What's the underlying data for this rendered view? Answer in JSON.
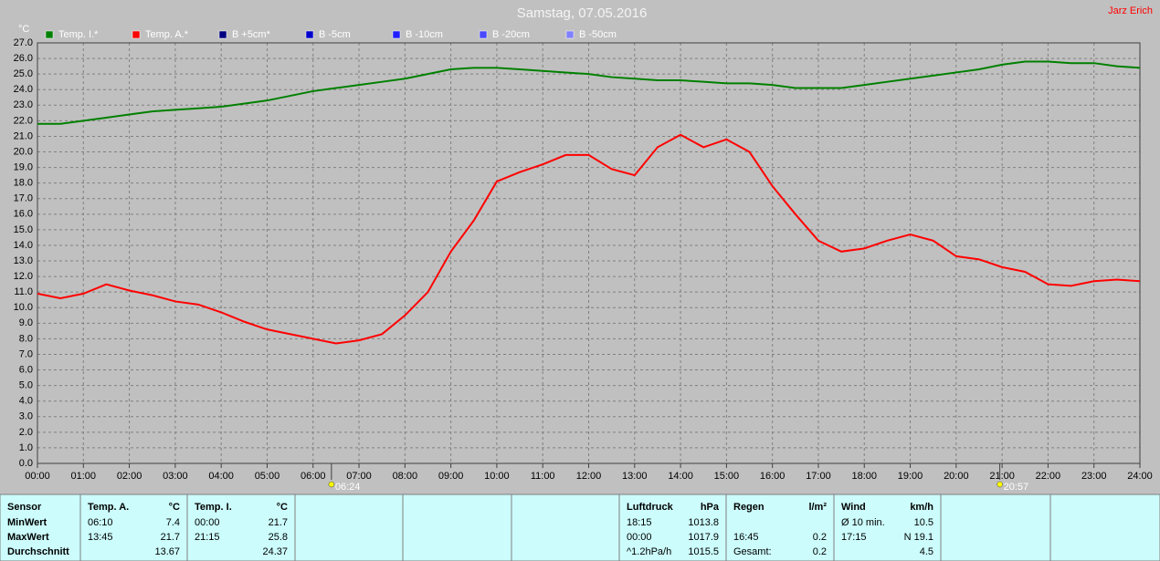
{
  "chart_data": {
    "type": "line",
    "title": "Samstag, 07.05.2016",
    "corner_text": "Jarz Erich",
    "y_axis_label": "°C",
    "grid": true,
    "x": [
      0,
      0.5,
      1,
      1.5,
      2,
      2.5,
      3,
      3.5,
      4,
      4.5,
      5,
      5.5,
      6,
      6.5,
      7,
      7.5,
      8,
      8.5,
      9,
      9.5,
      10,
      10.5,
      11,
      11.5,
      12,
      12.5,
      13,
      13.5,
      14,
      14.5,
      15,
      15.5,
      16,
      16.5,
      17,
      17.5,
      18,
      18.5,
      19,
      19.5,
      20,
      20.5,
      21,
      21.5,
      22,
      22.5,
      23,
      23.5,
      24
    ],
    "series": [
      {
        "name": "Temp. I.*",
        "color": "#008000",
        "values": [
          21.8,
          21.8,
          22.0,
          22.2,
          22.4,
          22.6,
          22.7,
          22.8,
          22.9,
          23.1,
          23.3,
          23.6,
          23.9,
          24.1,
          24.3,
          24.5,
          24.7,
          25.0,
          25.3,
          25.4,
          25.4,
          25.3,
          25.2,
          25.1,
          25.0,
          24.8,
          24.7,
          24.6,
          24.6,
          24.5,
          24.4,
          24.4,
          24.3,
          24.1,
          24.1,
          24.1,
          24.3,
          24.5,
          24.7,
          24.9,
          25.1,
          25.3,
          25.6,
          25.8,
          25.8,
          25.7,
          25.7,
          25.5,
          25.4
        ]
      },
      {
        "name": "Temp. A.*",
        "color": "#ff0000",
        "values": [
          10.9,
          10.6,
          10.9,
          11.5,
          11.1,
          10.8,
          10.4,
          10.2,
          9.7,
          9.1,
          8.6,
          8.3,
          8.0,
          7.7,
          7.9,
          8.3,
          9.5,
          11.0,
          13.6,
          15.6,
          18.1,
          18.7,
          19.2,
          19.8,
          19.8,
          18.9,
          18.5,
          20.3,
          21.1,
          20.3,
          20.8,
          20.0,
          17.8,
          16.0,
          14.3,
          13.6,
          13.8,
          14.3,
          14.7,
          14.3,
          13.3,
          13.1,
          12.6,
          12.3,
          11.5,
          11.4,
          11.7,
          11.8,
          11.7
        ]
      },
      {
        "name": "B +5cm*",
        "color": "#000080",
        "values": [
          null,
          null,
          null,
          null,
          null,
          null,
          null,
          null,
          null,
          null,
          null,
          null,
          null,
          null,
          null,
          null,
          null,
          null,
          null,
          null,
          null,
          null,
          null,
          null,
          null,
          null,
          null,
          null,
          null,
          null,
          null,
          null,
          null,
          null,
          null,
          null,
          null,
          null,
          null,
          null,
          null,
          null,
          null,
          null,
          null,
          null,
          null,
          null,
          null
        ]
      },
      {
        "name": "B -5cm",
        "color": "#0000cc",
        "values": [
          null,
          null,
          null,
          null,
          null,
          null,
          null,
          null,
          null,
          null,
          null,
          null,
          null,
          null,
          null,
          null,
          null,
          null,
          null,
          null,
          null,
          null,
          null,
          null,
          null,
          null,
          null,
          null,
          null,
          null,
          null,
          null,
          null,
          null,
          null,
          null,
          null,
          null,
          null,
          null,
          null,
          null,
          null,
          null,
          null,
          null,
          null,
          null,
          null
        ]
      },
      {
        "name": "B -10cm",
        "color": "#2020ff",
        "values": [
          null,
          null,
          null,
          null,
          null,
          null,
          null,
          null,
          null,
          null,
          null,
          null,
          null,
          null,
          null,
          null,
          null,
          null,
          null,
          null,
          null,
          null,
          null,
          null,
          null,
          null,
          null,
          null,
          null,
          null,
          null,
          null,
          null,
          null,
          null,
          null,
          null,
          null,
          null,
          null,
          null,
          null,
          null,
          null,
          null,
          null,
          null,
          null,
          null
        ]
      },
      {
        "name": "B -20cm",
        "color": "#4848ff",
        "values": [
          null,
          null,
          null,
          null,
          null,
          null,
          null,
          null,
          null,
          null,
          null,
          null,
          null,
          null,
          null,
          null,
          null,
          null,
          null,
          null,
          null,
          null,
          null,
          null,
          null,
          null,
          null,
          null,
          null,
          null,
          null,
          null,
          null,
          null,
          null,
          null,
          null,
          null,
          null,
          null,
          null,
          null,
          null,
          null,
          null,
          null,
          null,
          null,
          null
        ]
      },
      {
        "name": "B -50cm",
        "color": "#8080ff",
        "values": [
          null,
          null,
          null,
          null,
          null,
          null,
          null,
          null,
          null,
          null,
          null,
          null,
          null,
          null,
          null,
          null,
          null,
          null,
          null,
          null,
          null,
          null,
          null,
          null,
          null,
          null,
          null,
          null,
          null,
          null,
          null,
          null,
          null,
          null,
          null,
          null,
          null,
          null,
          null,
          null,
          null,
          null,
          null,
          null,
          null,
          null,
          null,
          null,
          null
        ]
      }
    ],
    "xlim": [
      0,
      24
    ],
    "xticks": [
      {
        "value": 0,
        "label": "00:00"
      },
      {
        "value": 1,
        "label": "01:00"
      },
      {
        "value": 2,
        "label": "02:00"
      },
      {
        "value": 3,
        "label": "03:00"
      },
      {
        "value": 4,
        "label": "04:00"
      },
      {
        "value": 5,
        "label": "05:00"
      },
      {
        "value": 6,
        "label": "06:00"
      },
      {
        "value": 7,
        "label": "07:00"
      },
      {
        "value": 8,
        "label": "08:00"
      },
      {
        "value": 9,
        "label": "09:00"
      },
      {
        "value": 10,
        "label": "10:00"
      },
      {
        "value": 11,
        "label": "11:00"
      },
      {
        "value": 12,
        "label": "12:00"
      },
      {
        "value": 13,
        "label": "13:00"
      },
      {
        "value": 14,
        "label": "14:00"
      },
      {
        "value": 15,
        "label": "15:00"
      },
      {
        "value": 16,
        "label": "16:00"
      },
      {
        "value": 17,
        "label": "17:00"
      },
      {
        "value": 18,
        "label": "18:00"
      },
      {
        "value": 19,
        "label": "19:00"
      },
      {
        "value": 20,
        "label": "20:00"
      },
      {
        "value": 21,
        "label": "21:00"
      },
      {
        "value": 22,
        "label": "22:00"
      },
      {
        "value": 23,
        "label": "23:00"
      },
      {
        "value": 24,
        "label": "24:00"
      }
    ],
    "ylim": [
      0,
      27
    ],
    "yticks": [
      {
        "value": 0,
        "label": "0.0"
      },
      {
        "value": 1,
        "label": "1.0"
      },
      {
        "value": 2,
        "label": "2.0"
      },
      {
        "value": 3,
        "label": "3.0"
      },
      {
        "value": 4,
        "label": "4.0"
      },
      {
        "value": 5,
        "label": "5.0"
      },
      {
        "value": 6,
        "label": "6.0"
      },
      {
        "value": 7,
        "label": "7.0"
      },
      {
        "value": 8,
        "label": "8.0"
      },
      {
        "value": 9,
        "label": "9.0"
      },
      {
        "value": 10,
        "label": "10.0"
      },
      {
        "value": 11,
        "label": "11.0"
      },
      {
        "value": 12,
        "label": "12.0"
      },
      {
        "value": 13,
        "label": "13.0"
      },
      {
        "value": 14,
        "label": "14.0"
      },
      {
        "value": 15,
        "label": "15.0"
      },
      {
        "value": 16,
        "label": "16.0"
      },
      {
        "value": 17,
        "label": "17.0"
      },
      {
        "value": 18,
        "label": "18.0"
      },
      {
        "value": 19,
        "label": "19.0"
      },
      {
        "value": 20,
        "label": "20.0"
      },
      {
        "value": 21,
        "label": "21.0"
      },
      {
        "value": 22,
        "label": "22.0"
      },
      {
        "value": 23,
        "label": "23.0"
      },
      {
        "value": 24,
        "label": "24.0"
      },
      {
        "value": 25,
        "label": "25.0"
      },
      {
        "value": 26,
        "label": "26.0"
      },
      {
        "value": 27,
        "label": "27.0"
      }
    ],
    "markers": [
      {
        "x": 6.4,
        "label": "06:24"
      },
      {
        "x": 20.95,
        "label": "20:57"
      }
    ]
  },
  "panels": [
    {
      "header": [
        "Sensor"
      ],
      "rows": [
        [
          "MinWert"
        ],
        [
          "MaxWert"
        ],
        [
          "Durchschnitt"
        ]
      ]
    },
    {
      "header": [
        "Temp. A.",
        "°C"
      ],
      "rows": [
        [
          "06:10",
          "7.4"
        ],
        [
          "13:45",
          "21.7"
        ],
        [
          null,
          "13.67"
        ]
      ]
    },
    {
      "header": [
        "Temp. I.",
        "°C"
      ],
      "rows": [
        [
          "00:00",
          "21.7"
        ],
        [
          "21:15",
          "25.8"
        ],
        [
          null,
          "24.37"
        ]
      ]
    },
    {
      "header": [
        "Luftdruck",
        "hPa"
      ],
      "rows": [
        [
          "18:15",
          "1013.8"
        ],
        [
          "00:00",
          "1017.9"
        ],
        [
          "^1.2hPa/h",
          "1015.5"
        ]
      ]
    },
    {
      "header": [
        "Regen",
        "l/m²"
      ],
      "rows": [
        [
          null,
          null
        ],
        [
          "16:45",
          "0.2"
        ],
        [
          "Gesamt:",
          "0.2"
        ]
      ]
    },
    {
      "header": [
        "Wind",
        "km/h"
      ],
      "rows": [
        [
          "Ø 10 min.",
          "10.5"
        ],
        [
          "17:15",
          "N 19.1"
        ],
        [
          null,
          "4.5"
        ]
      ]
    }
  ]
}
